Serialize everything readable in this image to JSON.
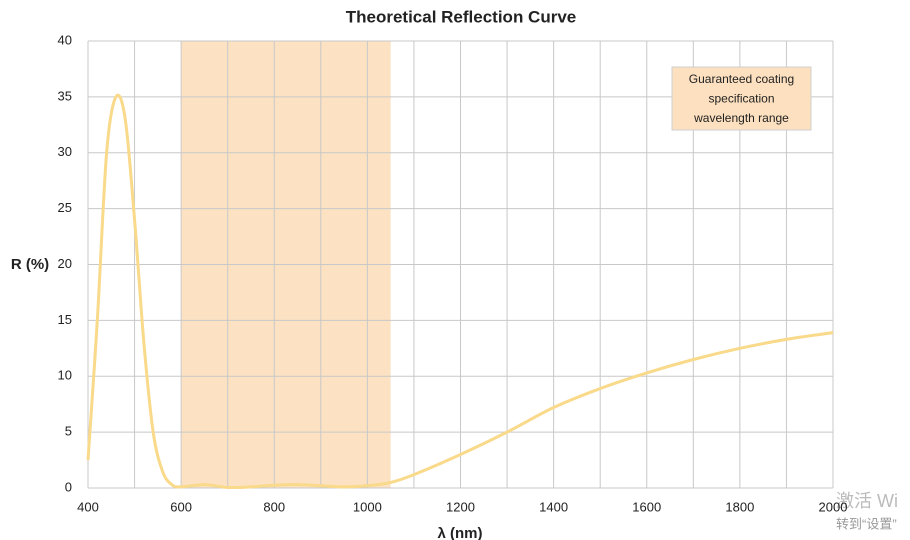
{
  "chart_data": {
    "type": "line",
    "title": "Theoretical Reflection Curve",
    "x_label": "λ (nm)",
    "y_label": "R (%)",
    "xlim": [
      400,
      2000
    ],
    "ylim": [
      0,
      40
    ],
    "xticks": [
      400,
      600,
      800,
      1000,
      1200,
      1400,
      1600,
      1800,
      2000
    ],
    "x_minor_grid": [
      500,
      700,
      900,
      1100,
      1300,
      1500,
      1700,
      1900
    ],
    "yticks": [
      0,
      5,
      10,
      15,
      20,
      25,
      30,
      35,
      40
    ],
    "grid": true,
    "shaded_range": [
      600,
      1050
    ],
    "shaded_color": "#fce2c2",
    "annotation": {
      "lines": [
        "Guaranteed coating",
        "specification",
        "wavelength range"
      ]
    },
    "series": [
      {
        "name": "R",
        "color": "#f9d98a",
        "x": [
          400,
          420,
          440,
          460,
          480,
          500,
          520,
          540,
          560,
          580,
          600,
          650,
          700,
          750,
          800,
          850,
          900,
          950,
          1000,
          1050,
          1100,
          1200,
          1300,
          1400,
          1500,
          1600,
          1700,
          1800,
          1900,
          2000
        ],
        "values": [
          2.5,
          15,
          30,
          35,
          33,
          24,
          13,
          5,
          1.5,
          0.3,
          0.1,
          0.3,
          0.05,
          0.1,
          0.25,
          0.3,
          0.2,
          0.1,
          0.2,
          0.5,
          1.2,
          3.0,
          5.0,
          7.2,
          8.9,
          10.3,
          11.5,
          12.5,
          13.3,
          13.9
        ]
      }
    ],
    "watermark": [
      "激活 Wi",
      "转到“设置”"
    ]
  }
}
